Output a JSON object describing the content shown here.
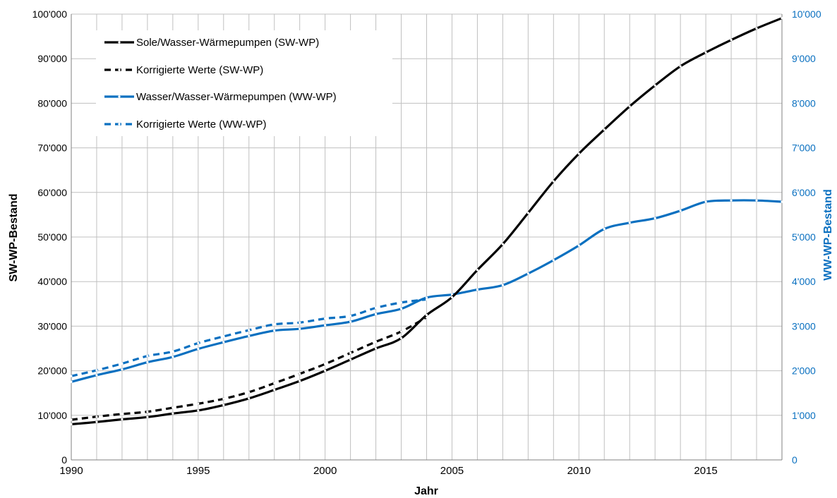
{
  "colors": {
    "sw": "#000000",
    "ww": "#0a70c0",
    "grid": "#c0c0c0",
    "axis": "#808080"
  },
  "legend": {
    "placement": "top-left",
    "entries": [
      {
        "label": "Sole/Wasser-Wärmepumpen (SW-WP)",
        "series": "sw",
        "style": "solid"
      },
      {
        "label": "Korrigierte Werte (SW-WP)",
        "series": "sw",
        "style": "dashed"
      },
      {
        "label": "Wasser/Wasser-Wärmepumpen (WW-WP)",
        "series": "ww",
        "style": "solid"
      },
      {
        "label": "Korrigierte Werte (WW-WP)",
        "series": "ww",
        "style": "dashed"
      }
    ]
  },
  "chart_data": {
    "type": "line",
    "xlabel": "Jahr",
    "ylabel_left": "SW-WP-Bestand",
    "ylabel_right": "WW-WP-Bestand",
    "xlim": [
      1990,
      2018
    ],
    "ylim_left": [
      0,
      100000
    ],
    "ylim_right": [
      0,
      10000
    ],
    "grid": true,
    "x_ticks": [
      "1990",
      "1995",
      "2000",
      "2005",
      "2010",
      "2015"
    ],
    "y_ticks_left": [
      "0",
      "10'000",
      "20'000",
      "30'000",
      "40'000",
      "50'000",
      "60'000",
      "70'000",
      "80'000",
      "90'000",
      "100'000"
    ],
    "y_ticks_right": [
      "0",
      "1'000",
      "2'000",
      "3'000",
      "4'000",
      "5'000",
      "6'000",
      "7'000",
      "8'000",
      "9'000",
      "10'000"
    ],
    "series": [
      {
        "name": "Sole/Wasser-Wärmepumpen (SW-WP)",
        "axis": "left",
        "style": "solid",
        "x": [
          1990,
          1991,
          1992,
          1993,
          1994,
          1995,
          1996,
          1997,
          1998,
          1999,
          2000,
          2001,
          2002,
          2003,
          2004,
          2005,
          2006,
          2007,
          2008,
          2009,
          2010,
          2011,
          2012,
          2013,
          2014,
          2015,
          2016,
          2017,
          2018
        ],
        "y": [
          8000,
          8500,
          9100,
          9600,
          10400,
          11100,
          12300,
          13800,
          15700,
          17700,
          20000,
          22500,
          25000,
          27300,
          32500,
          36500,
          42600,
          48400,
          55400,
          62500,
          68700,
          74100,
          79300,
          84000,
          88300,
          91400,
          94200,
          96800,
          99100
        ]
      },
      {
        "name": "Korrigierte Werte (SW-WP)",
        "axis": "left",
        "style": "dashed",
        "x": [
          1990,
          1991,
          1992,
          1993,
          1994,
          1995,
          1996,
          1997,
          1998,
          1999,
          2000,
          2001,
          2002,
          2003,
          2004
        ],
        "y": [
          9000,
          9700,
          10300,
          10800,
          11700,
          12600,
          13700,
          15200,
          17200,
          19300,
          21500,
          24000,
          26500,
          28800,
          32000
        ]
      },
      {
        "name": "Wasser/Wasser-Wärmepumpen (WW-WP)",
        "axis": "right",
        "style": "solid",
        "x": [
          1990,
          1991,
          1992,
          1993,
          1994,
          1995,
          1996,
          1997,
          1998,
          1999,
          2000,
          2001,
          2002,
          2003,
          2004,
          2005,
          2006,
          2007,
          2008,
          2009,
          2010,
          2011,
          2012,
          2013,
          2014,
          2015,
          2016,
          2017,
          2018
        ],
        "y": [
          1750,
          1900,
          2030,
          2190,
          2310,
          2490,
          2640,
          2780,
          2900,
          2940,
          3020,
          3100,
          3270,
          3390,
          3640,
          3710,
          3820,
          3920,
          4180,
          4480,
          4810,
          5180,
          5320,
          5420,
          5590,
          5790,
          5820,
          5820,
          5790
        ]
      },
      {
        "name": "Korrigierte Werte (WW-WP)",
        "axis": "right",
        "style": "dashed",
        "x": [
          1990,
          1991,
          1992,
          1993,
          1994,
          1995,
          1996,
          1997,
          1998,
          1999,
          2000,
          2001,
          2002,
          2003,
          2004
        ],
        "y": [
          1880,
          2010,
          2160,
          2330,
          2430,
          2620,
          2770,
          2910,
          3040,
          3080,
          3170,
          3230,
          3410,
          3530,
          3600
        ]
      }
    ]
  }
}
